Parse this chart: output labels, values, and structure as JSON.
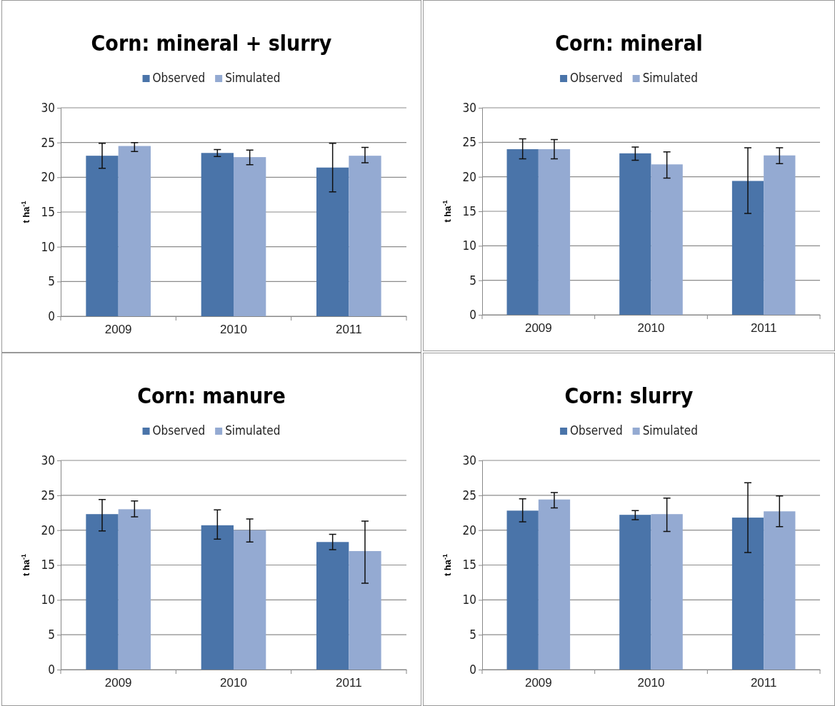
{
  "chart_data": [
    {
      "type": "bar",
      "title": "Corn: mineral + slurry",
      "ylabel": "t ha$^{-1}$",
      "categories": [
        "2009",
        "2010",
        "2011"
      ],
      "ylim": [
        0,
        30
      ],
      "yticks": [
        0,
        5,
        10,
        15,
        20,
        25,
        30
      ],
      "grid": "y",
      "legend": "top",
      "series": [
        {
          "name": "Observed",
          "color": "#4a74a9",
          "values": [
            23.1,
            23.5,
            21.4
          ],
          "errors": [
            [
              21.3,
              24.9
            ],
            [
              23.0,
              24.0
            ],
            [
              17.9,
              24.9
            ]
          ]
        },
        {
          "name": "Simulated",
          "color": "#94aad2",
          "values": [
            24.5,
            22.9,
            23.1
          ],
          "errors": [
            [
              23.7,
              25.0
            ],
            [
              21.8,
              23.9
            ],
            [
              22.1,
              24.3
            ]
          ]
        }
      ]
    },
    {
      "type": "bar",
      "title": "Corn: mineral",
      "ylabel": "t ha$^{-1}$",
      "categories": [
        "2009",
        "2010",
        "2011"
      ],
      "ylim": [
        0,
        30
      ],
      "yticks": [
        0,
        5,
        10,
        15,
        20,
        25,
        30
      ],
      "grid": "y",
      "legend": "top",
      "series": [
        {
          "name": "Observed",
          "color": "#4a74a9",
          "values": [
            24.0,
            23.4,
            19.4
          ],
          "errors": [
            [
              22.6,
              25.5
            ],
            [
              22.4,
              24.3
            ],
            [
              14.7,
              24.2
            ]
          ]
        },
        {
          "name": "Simulated",
          "color": "#94aad2",
          "values": [
            24.0,
            21.8,
            23.1
          ],
          "errors": [
            [
              22.6,
              25.4
            ],
            [
              19.8,
              23.6
            ],
            [
              21.9,
              24.2
            ]
          ]
        }
      ]
    },
    {
      "type": "bar",
      "title": "Corn: manure",
      "ylabel": "t ha$^{-1}$",
      "categories": [
        "2009",
        "2010",
        "2011"
      ],
      "ylim": [
        0,
        30
      ],
      "yticks": [
        0,
        5,
        10,
        15,
        20,
        25,
        30
      ],
      "grid": "y",
      "legend": "top",
      "series": [
        {
          "name": "Observed",
          "color": "#4a74a9",
          "values": [
            22.3,
            20.7,
            18.3
          ],
          "errors": [
            [
              19.9,
              24.4
            ],
            [
              18.7,
              22.9
            ],
            [
              17.2,
              19.4
            ]
          ]
        },
        {
          "name": "Simulated",
          "color": "#94aad2",
          "values": [
            23.0,
            20.0,
            17.0
          ],
          "errors": [
            [
              21.9,
              24.2
            ],
            [
              18.3,
              21.6
            ],
            [
              12.4,
              21.3
            ]
          ]
        }
      ]
    },
    {
      "type": "bar",
      "title": "Corn: slurry",
      "ylabel": "t ha$^{-1}$",
      "categories": [
        "2009",
        "2010",
        "2011"
      ],
      "ylim": [
        0,
        30
      ],
      "yticks": [
        0,
        5,
        10,
        15,
        20,
        25,
        30
      ],
      "grid": "y",
      "legend": "top",
      "series": [
        {
          "name": "Observed",
          "color": "#4a74a9",
          "values": [
            22.8,
            22.2,
            21.8
          ],
          "errors": [
            [
              21.2,
              24.5
            ],
            [
              21.5,
              22.8
            ],
            [
              16.8,
              26.8
            ]
          ]
        },
        {
          "name": "Simulated",
          "color": "#94aad2",
          "values": [
            24.4,
            22.3,
            22.7
          ],
          "errors": [
            [
              23.2,
              25.4
            ],
            [
              19.8,
              24.6
            ],
            [
              20.5,
              24.9
            ]
          ]
        }
      ]
    }
  ]
}
